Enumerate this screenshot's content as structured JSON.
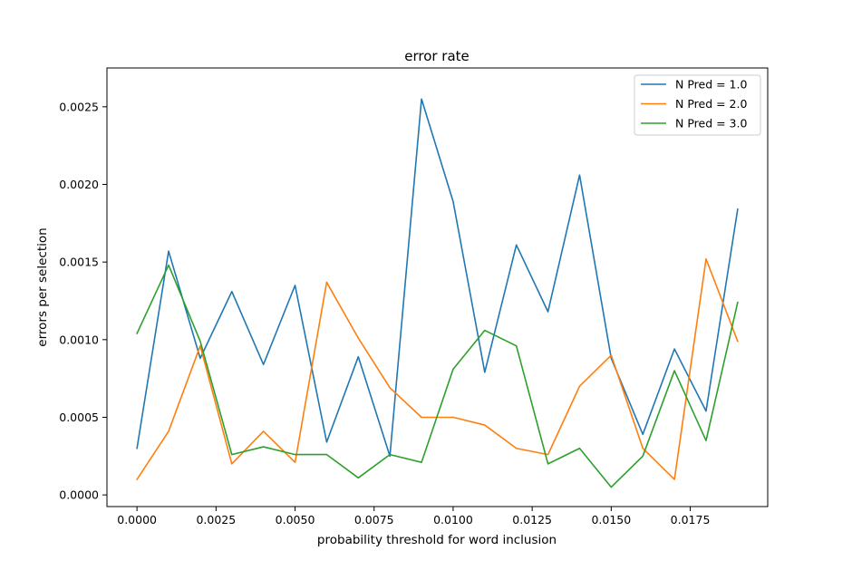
{
  "chart_data": {
    "type": "line",
    "title": "error rate",
    "xlabel": "probability threshold for word inclusion",
    "ylabel": "errors per selection",
    "xlim": [
      -0.00095,
      0.01995
    ],
    "ylim": [
      -7.5e-05,
      0.00275
    ],
    "xticks": [
      0.0,
      0.0025,
      0.005,
      0.0075,
      0.01,
      0.0125,
      0.015,
      0.0175
    ],
    "xtick_labels": [
      "0.0000",
      "0.0025",
      "0.0050",
      "0.0075",
      "0.0100",
      "0.0125",
      "0.0150",
      "0.0175"
    ],
    "yticks": [
      0.0,
      0.0005,
      0.001,
      0.0015,
      0.002,
      0.0025
    ],
    "ytick_labels": [
      "0.0000",
      "0.0005",
      "0.0010",
      "0.0015",
      "0.0020",
      "0.0025"
    ],
    "grid": false,
    "legend": "top-right",
    "x": [
      0.0,
      0.001,
      0.002,
      0.003,
      0.004,
      0.005,
      0.006,
      0.007,
      0.008,
      0.009,
      0.01,
      0.011,
      0.012,
      0.013,
      0.014,
      0.015,
      0.016,
      0.017,
      0.018,
      0.019
    ],
    "series": [
      {
        "name": "N Pred = 1.0",
        "color": "#1f77b4",
        "values": [
          0.0003,
          0.00157,
          0.00088,
          0.00131,
          0.00084,
          0.00135,
          0.00034,
          0.00089,
          0.00025,
          0.00255,
          0.00189,
          0.00079,
          0.00161,
          0.00118,
          0.00206,
          0.00088,
          0.00039,
          0.00094,
          0.00054,
          0.00184
        ]
      },
      {
        "name": "N Pred = 2.0",
        "color": "#ff7f0e",
        "values": [
          0.0001,
          0.00041,
          0.00096,
          0.0002,
          0.00041,
          0.00021,
          0.00137,
          0.00101,
          0.00069,
          0.0005,
          0.0005,
          0.00045,
          0.0003,
          0.00026,
          0.0007,
          0.0009,
          0.0003,
          0.0001,
          0.00152,
          0.00099
        ]
      },
      {
        "name": "N Pred = 3.0",
        "color": "#2ca02c",
        "values": [
          0.00104,
          0.00148,
          0.00099,
          0.00026,
          0.00031,
          0.00026,
          0.00026,
          0.00011,
          0.00026,
          0.00021,
          0.00081,
          0.00106,
          0.00096,
          0.0002,
          0.0003,
          5e-05,
          0.00025,
          0.0008,
          0.00035,
          0.00124
        ]
      }
    ]
  }
}
